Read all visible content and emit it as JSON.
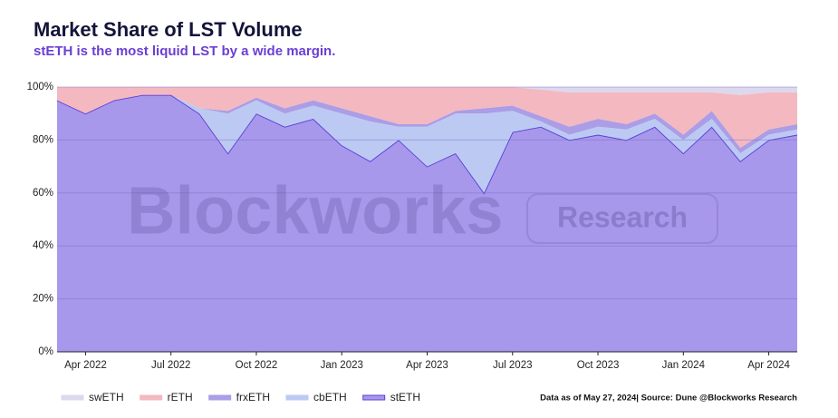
{
  "chart_data": {
    "type": "stacked_area",
    "title": "Market Share of LST Volume",
    "subtitle": "stETH is the most liquid LST by a wide margin.",
    "source": "Data as of May 27, 2024| Source: Dune @Blockworks Research",
    "watermark": [
      "Blockworks",
      "Research"
    ],
    "categories": [
      null,
      "Apr 2022",
      null,
      null,
      "Jul 2022",
      null,
      null,
      "Oct 2022",
      null,
      null,
      "Jan 2023",
      null,
      null,
      "Apr 2023",
      null,
      null,
      "Jul 2023",
      null,
      null,
      "Oct 2023",
      null,
      null,
      "Jan 2024",
      null,
      null,
      "Apr 2024",
      null
    ],
    "series": [
      {
        "name": "swETH",
        "color": "#dcd8ee",
        "values": [
          0,
          0,
          0,
          0,
          0,
          0,
          0,
          0,
          0,
          0,
          0,
          0,
          0,
          0,
          0,
          0,
          0,
          1,
          2,
          2,
          2,
          2,
          2,
          2,
          3,
          2,
          2
        ]
      },
      {
        "name": "rETH",
        "color": "#f4b8c0",
        "values": [
          5,
          10,
          5,
          3,
          3,
          8,
          9,
          4,
          8,
          5,
          8,
          11,
          14,
          14,
          9,
          8,
          7,
          10,
          13,
          10,
          12,
          8,
          16,
          7,
          20,
          14,
          12
        ]
      },
      {
        "name": "frxETH",
        "color": "#ab9de6",
        "values": [
          0,
          0,
          0,
          0,
          0,
          0,
          1,
          1,
          2,
          2,
          2,
          2,
          1,
          1,
          1,
          2,
          2,
          2,
          3,
          3,
          2,
          2,
          2,
          3,
          2,
          2,
          2
        ]
      },
      {
        "name": "cbETH",
        "color": "#bccaf3",
        "values": [
          0,
          0,
          0,
          0,
          0,
          2,
          15,
          5,
          5,
          5,
          12,
          15,
          5,
          15,
          15,
          30,
          8,
          2,
          2,
          3,
          4,
          3,
          5,
          3,
          3,
          2,
          2
        ]
      },
      {
        "name": "stETH",
        "color": "#a898eb",
        "line_color": "#5b3fd6",
        "values": [
          95,
          90,
          95,
          97,
          97,
          90,
          75,
          90,
          85,
          88,
          78,
          72,
          80,
          70,
          75,
          60,
          83,
          85,
          80,
          82,
          80,
          85,
          75,
          85,
          72,
          80,
          82
        ]
      }
    ],
    "ylim": [
      0,
      100
    ],
    "yticks": [
      {
        "value": 0,
        "label": "0%"
      },
      {
        "value": 20,
        "label": "20%"
      },
      {
        "value": 40,
        "label": "40%"
      },
      {
        "value": 60,
        "label": "60%"
      },
      {
        "value": 80,
        "label": "80%"
      },
      {
        "value": 100,
        "label": "100%"
      }
    ],
    "grid": true
  }
}
